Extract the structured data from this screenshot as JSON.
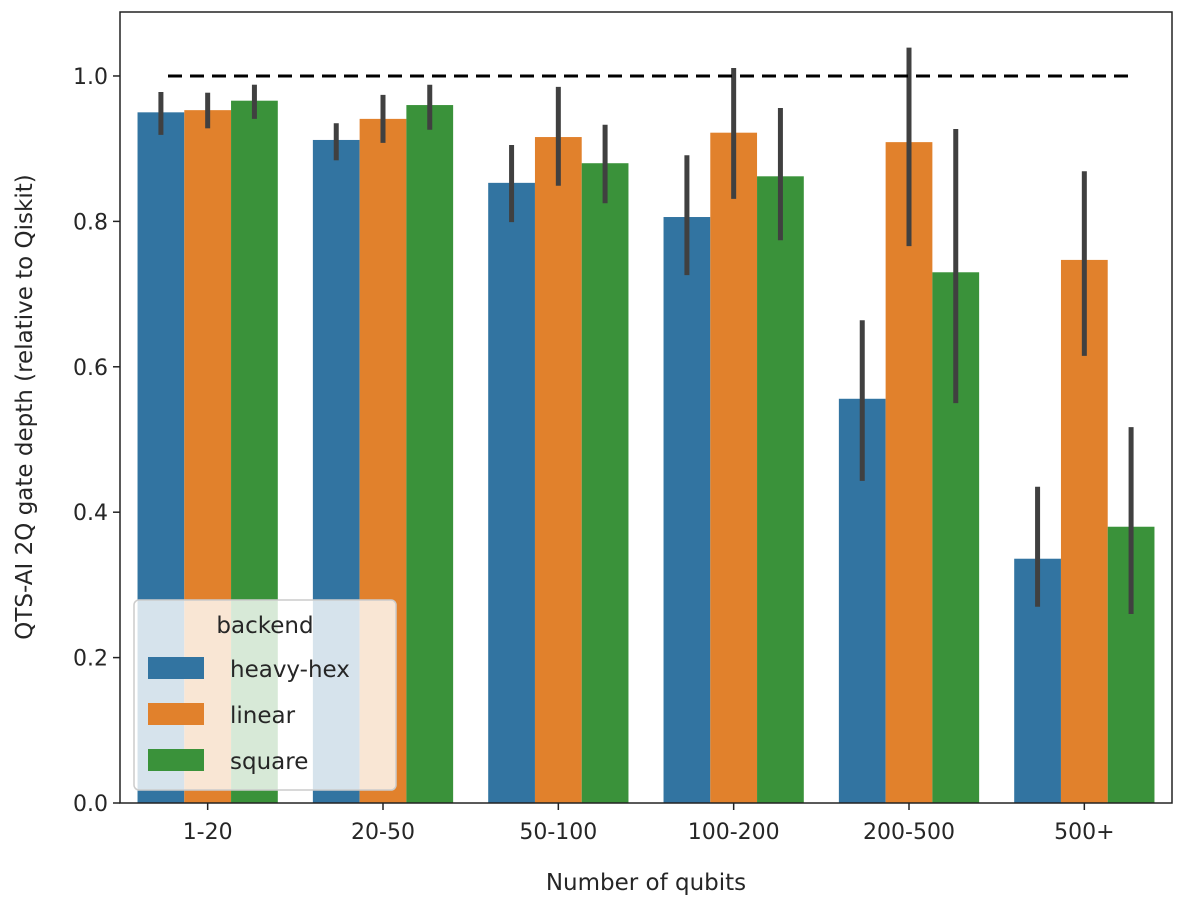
{
  "chart_data": {
    "type": "bar",
    "title": "",
    "xlabel": "Number of qubits",
    "ylabel": "QTS-AI 2Q gate depth (relative to Qiskit)",
    "ylim": [
      0,
      1.088
    ],
    "yticks": [
      "0.0",
      "0.2",
      "0.4",
      "0.6",
      "0.8",
      "1.0"
    ],
    "ytick_values": [
      0,
      0.2,
      0.4,
      0.6,
      0.8,
      1.0
    ],
    "categories": [
      "1-20",
      "20-50",
      "50-100",
      "100-200",
      "200-500",
      "500+"
    ],
    "reference_line": {
      "y": 1.0,
      "style": "dashed",
      "color": "#000000"
    },
    "legend": {
      "title": "backend",
      "placement": "lower-left"
    },
    "series": [
      {
        "name": "heavy-hex",
        "color": "#3274a1",
        "values": [
          0.95,
          0.912,
          0.853,
          0.806,
          0.556,
          0.336
        ],
        "err_low": [
          0.919,
          0.884,
          0.799,
          0.726,
          0.443,
          0.27
        ],
        "err_high": [
          0.978,
          0.935,
          0.905,
          0.891,
          0.664,
          0.435
        ]
      },
      {
        "name": "linear",
        "color": "#e1812c",
        "values": [
          0.953,
          0.941,
          0.916,
          0.922,
          0.909,
          0.747
        ],
        "err_low": [
          0.928,
          0.908,
          0.849,
          0.831,
          0.766,
          0.615
        ],
        "err_high": [
          0.977,
          0.974,
          0.985,
          1.011,
          1.039,
          0.869
        ]
      },
      {
        "name": "square",
        "color": "#3a923a",
        "values": [
          0.966,
          0.96,
          0.88,
          0.862,
          0.73,
          0.38
        ],
        "err_low": [
          0.941,
          0.926,
          0.825,
          0.774,
          0.55,
          0.26
        ],
        "err_high": [
          0.988,
          0.988,
          0.933,
          0.956,
          0.927,
          0.517
        ]
      }
    ]
  }
}
